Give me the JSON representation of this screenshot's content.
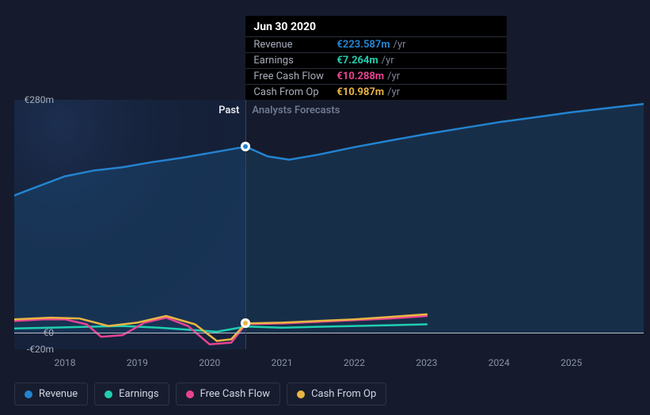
{
  "chart": {
    "background_color": "#151b2c",
    "past_shade_color": "rgba(25,50,90,0.35)",
    "divider_color": "#3a435a",
    "baseline_color": "#b9bec9",
    "section_labels": {
      "past": "Past",
      "forecast": "Analysts Forecasts"
    },
    "section_label_colors": {
      "past": "#e2e6ee",
      "forecast": "#6e7890"
    },
    "y_axis": {
      "min": -20,
      "max": 280,
      "ticks": [
        {
          "value": 280,
          "label": "€280m"
        },
        {
          "value": 0,
          "label": "€0"
        },
        {
          "value": -20,
          "label": "-€20m"
        }
      ],
      "label_color": "#a6adbb",
      "label_fontsize": 12
    },
    "x_axis": {
      "min": 2017.3,
      "max": 2026.0,
      "divider": 2020.5,
      "ticks": [
        2018,
        2019,
        2020,
        2021,
        2022,
        2023,
        2024,
        2025
      ],
      "label_color": "#8a92a6",
      "label_fontsize": 12
    },
    "series": [
      {
        "id": "revenue",
        "name": "Revenue",
        "color": "#2383cf",
        "fill": true,
        "fill_color": "rgba(35,131,207,0.18)",
        "stroke_width": 2.5,
        "points": [
          [
            2017.3,
            165
          ],
          [
            2017.6,
            175
          ],
          [
            2018.0,
            188
          ],
          [
            2018.4,
            195
          ],
          [
            2018.8,
            199
          ],
          [
            2019.2,
            205
          ],
          [
            2019.6,
            210
          ],
          [
            2020.0,
            216
          ],
          [
            2020.5,
            223.6
          ],
          [
            2020.8,
            212
          ],
          [
            2021.1,
            208
          ],
          [
            2021.5,
            214
          ],
          [
            2022.0,
            223
          ],
          [
            2022.5,
            231
          ],
          [
            2023.0,
            239
          ],
          [
            2023.5,
            246
          ],
          [
            2024.0,
            253
          ],
          [
            2024.5,
            259
          ],
          [
            2025.0,
            265
          ],
          [
            2025.5,
            270
          ],
          [
            2026.0,
            275
          ]
        ]
      },
      {
        "id": "earnings",
        "name": "Earnings",
        "color": "#1fcfb0",
        "fill": false,
        "stroke_width": 2.5,
        "points": [
          [
            2017.3,
            5
          ],
          [
            2017.8,
            6
          ],
          [
            2018.3,
            7
          ],
          [
            2018.8,
            8
          ],
          [
            2019.3,
            6
          ],
          [
            2019.8,
            3
          ],
          [
            2020.1,
            1
          ],
          [
            2020.5,
            7.3
          ],
          [
            2021.0,
            6
          ],
          [
            2021.5,
            7
          ],
          [
            2022.0,
            8
          ],
          [
            2022.5,
            9
          ],
          [
            2023.0,
            10
          ]
        ]
      },
      {
        "id": "fcf",
        "name": "Free Cash Flow",
        "color": "#e84393",
        "fill": false,
        "stroke_width": 2.5,
        "points": [
          [
            2017.3,
            14
          ],
          [
            2017.7,
            16
          ],
          [
            2018.0,
            16
          ],
          [
            2018.3,
            10
          ],
          [
            2018.5,
            -5
          ],
          [
            2018.8,
            -3
          ],
          [
            2019.1,
            12
          ],
          [
            2019.4,
            18
          ],
          [
            2019.7,
            8
          ],
          [
            2020.0,
            -14
          ],
          [
            2020.3,
            -12
          ],
          [
            2020.5,
            10.3
          ],
          [
            2021.0,
            11
          ],
          [
            2021.5,
            13
          ],
          [
            2022.0,
            15
          ],
          [
            2022.5,
            17
          ],
          [
            2023.0,
            20
          ]
        ]
      },
      {
        "id": "cfo",
        "name": "Cash From Op",
        "color": "#eab543",
        "fill": false,
        "stroke_width": 2.5,
        "points": [
          [
            2017.3,
            16
          ],
          [
            2017.8,
            18
          ],
          [
            2018.2,
            17
          ],
          [
            2018.6,
            8
          ],
          [
            2019.0,
            12
          ],
          [
            2019.4,
            20
          ],
          [
            2019.8,
            10
          ],
          [
            2020.1,
            -10
          ],
          [
            2020.3,
            -8
          ],
          [
            2020.5,
            11.0
          ],
          [
            2021.0,
            12
          ],
          [
            2021.5,
            14
          ],
          [
            2022.0,
            16
          ],
          [
            2022.5,
            19
          ],
          [
            2023.0,
            22
          ]
        ]
      }
    ],
    "hover": {
      "x": 2020.5,
      "markers": [
        {
          "series": "revenue",
          "y": 223.6,
          "color": "#2383cf"
        },
        {
          "series": "cfo",
          "y": 11.0,
          "color": "#eab543"
        }
      ]
    }
  },
  "tooltip": {
    "title": "Jun 30 2020",
    "unit": "/yr",
    "rows": [
      {
        "label": "Revenue",
        "value": "€223.587m",
        "color": "#2383cf"
      },
      {
        "label": "Earnings",
        "value": "€7.264m",
        "color": "#1fcfb0"
      },
      {
        "label": "Free Cash Flow",
        "value": "€10.288m",
        "color": "#e84393"
      },
      {
        "label": "Cash From Op",
        "value": "€10.987m",
        "color": "#eab543"
      }
    ]
  },
  "legend": {
    "items": [
      {
        "id": "revenue",
        "label": "Revenue",
        "color": "#2383cf"
      },
      {
        "id": "earnings",
        "label": "Earnings",
        "color": "#1fcfb0"
      },
      {
        "id": "fcf",
        "label": "Free Cash Flow",
        "color": "#e84393"
      },
      {
        "id": "cfo",
        "label": "Cash From Op",
        "color": "#eab543"
      }
    ],
    "border_color": "#2b3446",
    "text_color": "#cfd5e1"
  }
}
